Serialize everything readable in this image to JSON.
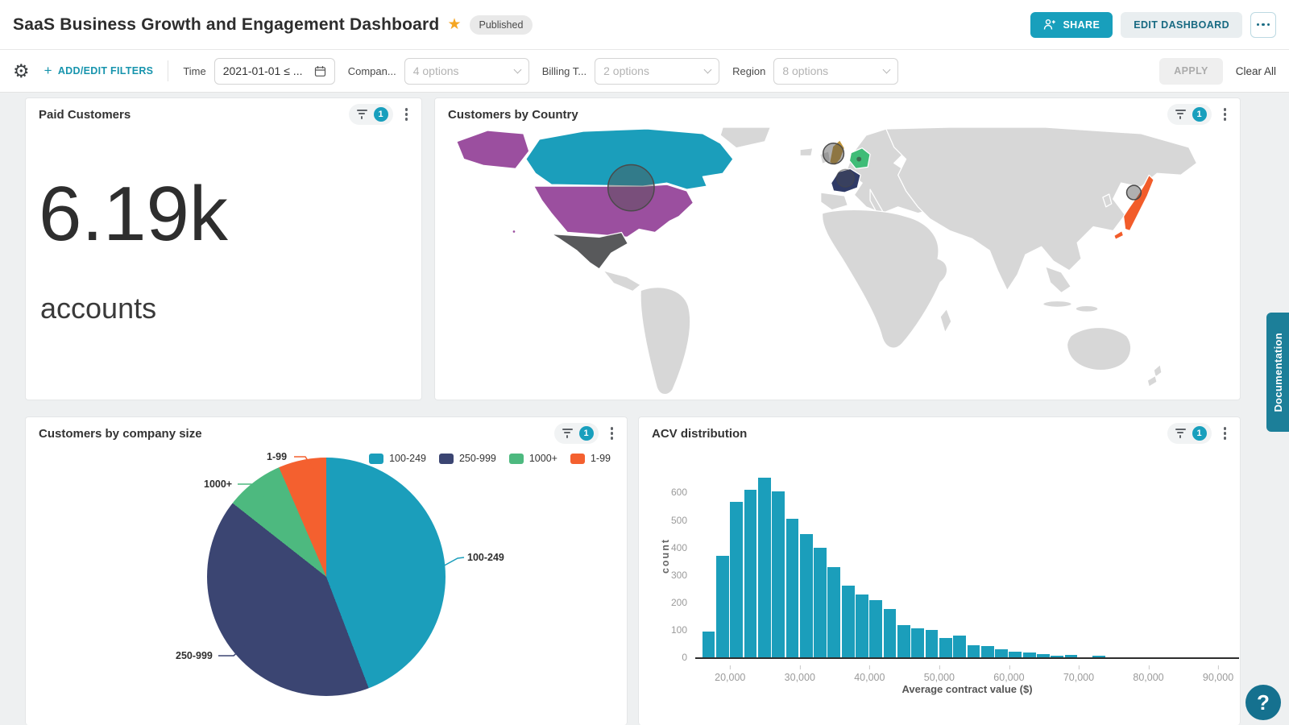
{
  "header": {
    "title": "SaaS Business Growth and Engagement Dashboard",
    "status_badge": "Published",
    "share_label": "SHARE",
    "edit_dashboard_label": "EDIT DASHBOARD"
  },
  "filter_bar": {
    "add_icon": "+",
    "add_edit_filters_label": "ADD/EDIT FILTERS",
    "filters": [
      {
        "label": "Time",
        "value": "2021-01-01 ≤ ..."
      },
      {
        "label": "Compan...",
        "value": "4 options"
      },
      {
        "label": "Billing T...",
        "value": "2 options"
      },
      {
        "label": "Region",
        "value": "8 options"
      }
    ],
    "apply_label": "APPLY",
    "clear_all_label": "Clear All"
  },
  "cards": {
    "paid_customers": {
      "title": "Paid Customers",
      "value": "6.19k",
      "unit": "accounts",
      "filter_count": "1"
    },
    "customers_by_country": {
      "title": "Customers by Country",
      "filter_count": "1"
    },
    "company_size": {
      "title": "Customers by company size",
      "filter_count": "1"
    },
    "acv": {
      "title": "ACV distribution",
      "filter_count": "1"
    }
  },
  "side": {
    "documentation_label": "Documentation",
    "help_label": "?"
  },
  "chart_data": [
    {
      "id": "customers_by_company_size",
      "type": "pie",
      "title": "Customers by company size",
      "labels": [
        "100-249",
        "250-999",
        "1000+",
        "1-99"
      ],
      "values_pct": [
        44.2,
        41.4,
        7.9,
        6.5
      ],
      "colors": [
        "#1b9ebb",
        "#3b4572",
        "#4db97f",
        "#f4602f"
      ],
      "legend_position": "top-right"
    },
    {
      "id": "acv_distribution",
      "type": "bar",
      "title": "ACV distribution",
      "xlabel": "Average contract value ($)",
      "ylabel": "count",
      "bar_color": "#1b9ebb",
      "bin_start": 16000,
      "bin_width": 2000,
      "values": [
        95,
        370,
        565,
        610,
        655,
        605,
        505,
        450,
        400,
        330,
        262,
        230,
        207,
        175,
        117,
        107,
        100,
        70,
        78,
        43,
        40,
        30,
        20,
        17,
        12,
        6,
        10,
        0,
        5
      ],
      "xticks": [
        20000,
        30000,
        40000,
        50000,
        60000,
        70000,
        80000,
        90000
      ],
      "yticks": [
        0,
        100,
        200,
        300,
        400,
        500,
        600
      ],
      "xlim": [
        15000,
        93000
      ],
      "ylim": [
        0,
        660
      ]
    },
    {
      "id": "customers_by_country",
      "type": "heatmap",
      "title": "Customers by Country",
      "base_color": "#d7d7d7",
      "highlighted": [
        {
          "country": "United States",
          "color": "#9b4f9f"
        },
        {
          "country": "Canada",
          "color": "#1b9ebb"
        },
        {
          "country": "Mexico",
          "color": "#58595b"
        },
        {
          "country": "United Kingdom",
          "color": "#c29537"
        },
        {
          "country": "France",
          "color": "#2f3a66"
        },
        {
          "country": "Germany",
          "color": "#3fbc77"
        },
        {
          "country": "Japan",
          "color": "#f25c2a"
        }
      ],
      "bubbles": [
        "United States",
        "United Kingdom",
        "France",
        "Germany",
        "Japan"
      ]
    }
  ]
}
